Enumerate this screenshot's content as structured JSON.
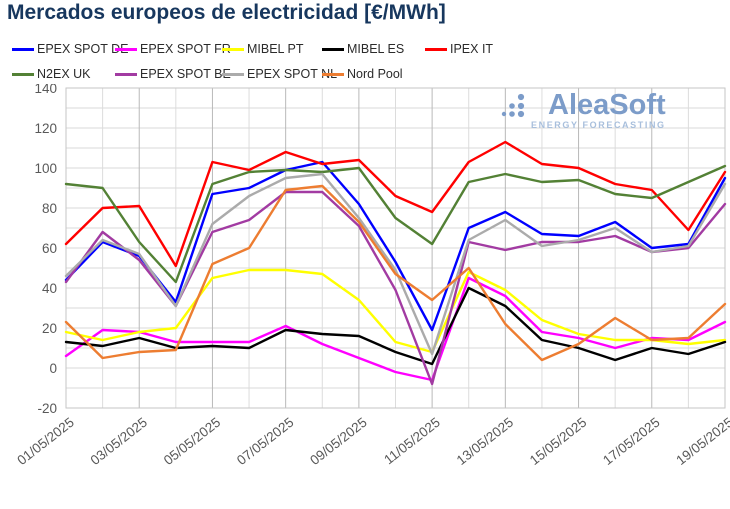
{
  "title": "Mercados europeos de electricidad [€/MWh]",
  "logo": {
    "name": "AleaSoft",
    "tagline": "ENERGY FORECASTING",
    "color": "#7C9CC9"
  },
  "axes": {
    "y_tick_labels": [
      "-20",
      "0",
      "20",
      "40",
      "60",
      "80",
      "100",
      "120",
      "140"
    ],
    "x_tick_labels": [
      "01/05/2025",
      "03/05/2025",
      "05/05/2025",
      "07/05/2025",
      "09/05/2025",
      "11/05/2025",
      "13/05/2025",
      "15/05/2025",
      "17/05/2025",
      "19/05/2025"
    ]
  },
  "chart_data": {
    "type": "line",
    "title": "Mercados europeos de electricidad [€/MWh]",
    "x": [
      "01/05/2025",
      "02/05/2025",
      "03/05/2025",
      "04/05/2025",
      "05/05/2025",
      "06/05/2025",
      "07/05/2025",
      "08/05/2025",
      "09/05/2025",
      "10/05/2025",
      "11/05/2025",
      "12/05/2025",
      "13/05/2025",
      "14/05/2025",
      "15/05/2025",
      "16/05/2025",
      "17/05/2025",
      "18/05/2025",
      "19/05/2025"
    ],
    "x_labels_shown": [
      "01/05/2025",
      "03/05/2025",
      "05/05/2025",
      "07/05/2025",
      "09/05/2025",
      "11/05/2025",
      "13/05/2025",
      "15/05/2025",
      "17/05/2025",
      "19/05/2025"
    ],
    "ylabel": "",
    "xlabel": "",
    "ylim": [
      -20,
      140
    ],
    "ytick_step": 20,
    "grid": true,
    "legend_position": "top",
    "series": [
      {
        "name": "EPEX SPOT DE",
        "color": "#0000FF",
        "values": [
          44,
          63,
          56,
          33,
          87,
          90,
          99,
          103,
          82,
          53,
          19,
          70,
          78,
          67,
          66,
          73,
          60,
          62,
          95
        ]
      },
      {
        "name": "EPEX SPOT FR",
        "color": "#FF00FF",
        "values": [
          6,
          19,
          18,
          13,
          13,
          13,
          21,
          12,
          5,
          -2,
          -6,
          45,
          36,
          18,
          15,
          10,
          15,
          14,
          23
        ]
      },
      {
        "name": "MIBEL PT",
        "color": "#FFFF00",
        "values": [
          18,
          14,
          18,
          20,
          45,
          49,
          49,
          47,
          34,
          13,
          8,
          48,
          39,
          24,
          17,
          14,
          14,
          12,
          14
        ]
      },
      {
        "name": "MIBEL ES",
        "color": "#000000",
        "values": [
          13,
          11,
          15,
          10,
          11,
          10,
          19,
          17,
          16,
          8,
          2,
          40,
          31,
          14,
          10,
          4,
          10,
          7,
          13
        ]
      },
      {
        "name": "IPEX IT",
        "color": "#FF0000",
        "values": [
          62,
          80,
          81,
          51,
          103,
          99,
          108,
          102,
          104,
          86,
          78,
          103,
          113,
          102,
          100,
          92,
          89,
          69,
          98
        ]
      },
      {
        "name": "N2EX UK",
        "color": "#538135",
        "values": [
          92,
          90,
          63,
          43,
          92,
          98,
          99,
          98,
          100,
          75,
          62,
          93,
          97,
          93,
          94,
          87,
          85,
          93,
          101
        ]
      },
      {
        "name": "EPEX SPOT BE",
        "color": "#A23BA2",
        "values": [
          43,
          68,
          54,
          31,
          68,
          74,
          88,
          88,
          71,
          39,
          -8,
          63,
          59,
          63,
          63,
          66,
          58,
          60,
          82
        ]
      },
      {
        "name": "EPEX SPOT NL",
        "color": "#ABABAB",
        "values": [
          46,
          64,
          57,
          31,
          72,
          86,
          95,
          97,
          75,
          49,
          7,
          64,
          74,
          61,
          64,
          70,
          58,
          61,
          92
        ]
      },
      {
        "name": "Nord Pool",
        "color": "#ED7D31",
        "values": [
          23,
          5,
          8,
          9,
          52,
          60,
          89,
          91,
          73,
          47,
          34,
          50,
          22,
          4,
          12,
          25,
          14,
          15,
          32
        ]
      }
    ]
  }
}
